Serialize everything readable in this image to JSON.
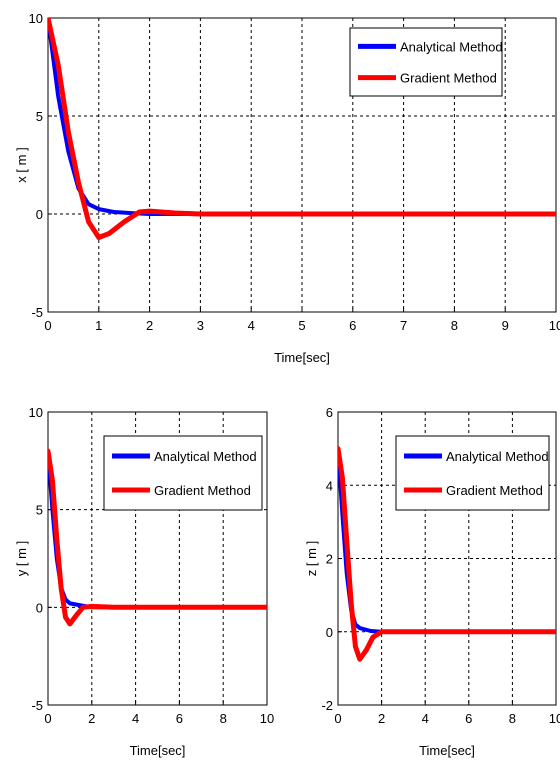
{
  "chart_data": [
    {
      "type": "line",
      "title": "",
      "xlabel": "Time[sec]",
      "ylabel": "x  [ m ]",
      "xlim": [
        0,
        10
      ],
      "ylim": [
        -5,
        10
      ],
      "xticks": [
        0,
        1,
        2,
        3,
        4,
        5,
        6,
        7,
        8,
        9,
        10
      ],
      "yticks": [
        -5,
        0,
        5,
        10
      ],
      "xtick_labels": [
        "0",
        "1",
        "2",
        "3",
        "4",
        "5",
        "6",
        "7",
        "8",
        "9",
        "10"
      ],
      "ytick_labels": [
        "-5",
        "0",
        "5",
        "10"
      ],
      "grid": true,
      "legend": "top-right",
      "series": [
        {
          "name": "Analytical Method",
          "color": "#0000ff",
          "points": [
            [
              0,
              10
            ],
            [
              0.2,
              6.0
            ],
            [
              0.4,
              3.2
            ],
            [
              0.6,
              1.3
            ],
            [
              0.8,
              0.5
            ],
            [
              1.0,
              0.25
            ],
            [
              1.3,
              0.1
            ],
            [
              1.6,
              0.05
            ],
            [
              2.0,
              0.0
            ],
            [
              4.0,
              0.0
            ],
            [
              8.0,
              0.0
            ],
            [
              9.0,
              0.0
            ],
            [
              10.0,
              0.0
            ]
          ]
        },
        {
          "name": "Gradient Method",
          "color": "#ff0000",
          "points": [
            [
              0,
              10
            ],
            [
              0.2,
              7.6
            ],
            [
              0.4,
              4.2
            ],
            [
              0.6,
              1.6
            ],
            [
              0.8,
              -0.4
            ],
            [
              1.0,
              -1.2
            ],
            [
              1.2,
              -1.0
            ],
            [
              1.5,
              -0.4
            ],
            [
              1.8,
              0.1
            ],
            [
              2.0,
              0.15
            ],
            [
              2.5,
              0.05
            ],
            [
              3.0,
              0.0
            ],
            [
              10.0,
              0.0
            ]
          ]
        }
      ]
    },
    {
      "type": "line",
      "title": "",
      "xlabel": "Time[sec]",
      "ylabel": "y  [ m ]",
      "xlim": [
        0,
        10
      ],
      "ylim": [
        -5,
        10
      ],
      "xticks": [
        0,
        2,
        4,
        6,
        8,
        10
      ],
      "yticks": [
        -5,
        0,
        5,
        10
      ],
      "xtick_labels": [
        "0",
        "2",
        "4",
        "6",
        "8",
        "10"
      ],
      "ytick_labels": [
        "-5",
        "0",
        "5",
        "10"
      ],
      "grid": true,
      "legend": "top-right",
      "series": [
        {
          "name": "Analytical Method",
          "color": "#0000ff",
          "points": [
            [
              0,
              8
            ],
            [
              0.2,
              5.0
            ],
            [
              0.4,
              2.5
            ],
            [
              0.6,
              1.0
            ],
            [
              0.8,
              0.4
            ],
            [
              1.0,
              0.2
            ],
            [
              1.5,
              0.1
            ],
            [
              2.0,
              0.0
            ],
            [
              9.0,
              0.0
            ],
            [
              10.0,
              0.0
            ]
          ]
        },
        {
          "name": "Gradient Method",
          "color": "#ff0000",
          "points": [
            [
              0,
              8
            ],
            [
              0.2,
              6.5
            ],
            [
              0.4,
              3.5
            ],
            [
              0.6,
              1.0
            ],
            [
              0.8,
              -0.5
            ],
            [
              1.0,
              -0.85
            ],
            [
              1.3,
              -0.4
            ],
            [
              1.6,
              0.0
            ],
            [
              2.0,
              0.05
            ],
            [
              3.0,
              0.0
            ],
            [
              10.0,
              0.0
            ]
          ]
        }
      ]
    },
    {
      "type": "line",
      "title": "",
      "xlabel": "Time[sec]",
      "ylabel": "z  [ m ]",
      "xlim": [
        0,
        10
      ],
      "ylim": [
        -2,
        6
      ],
      "xticks": [
        0,
        2,
        4,
        6,
        8,
        10
      ],
      "yticks": [
        -2,
        0,
        2,
        4,
        6
      ],
      "xtick_labels": [
        "0",
        "2",
        "4",
        "6",
        "8",
        "10"
      ],
      "ytick_labels": [
        "-2",
        "0",
        "2",
        "4",
        "6"
      ],
      "grid": true,
      "legend": "top-right",
      "series": [
        {
          "name": "Analytical Method",
          "color": "#0000ff",
          "points": [
            [
              0,
              5
            ],
            [
              0.2,
              3.2
            ],
            [
              0.4,
              1.6
            ],
            [
              0.6,
              0.6
            ],
            [
              0.8,
              0.2
            ],
            [
              1.0,
              0.1
            ],
            [
              1.5,
              0.02
            ],
            [
              2.0,
              0.0
            ],
            [
              10.0,
              0.0
            ]
          ]
        },
        {
          "name": "Gradient Method",
          "color": "#ff0000",
          "points": [
            [
              0,
              5
            ],
            [
              0.2,
              4.2
            ],
            [
              0.4,
              2.5
            ],
            [
              0.6,
              0.8
            ],
            [
              0.8,
              -0.4
            ],
            [
              1.0,
              -0.75
            ],
            [
              1.3,
              -0.5
            ],
            [
              1.6,
              -0.15
            ],
            [
              2.0,
              0.0
            ],
            [
              10.0,
              0.0
            ]
          ]
        }
      ]
    }
  ]
}
